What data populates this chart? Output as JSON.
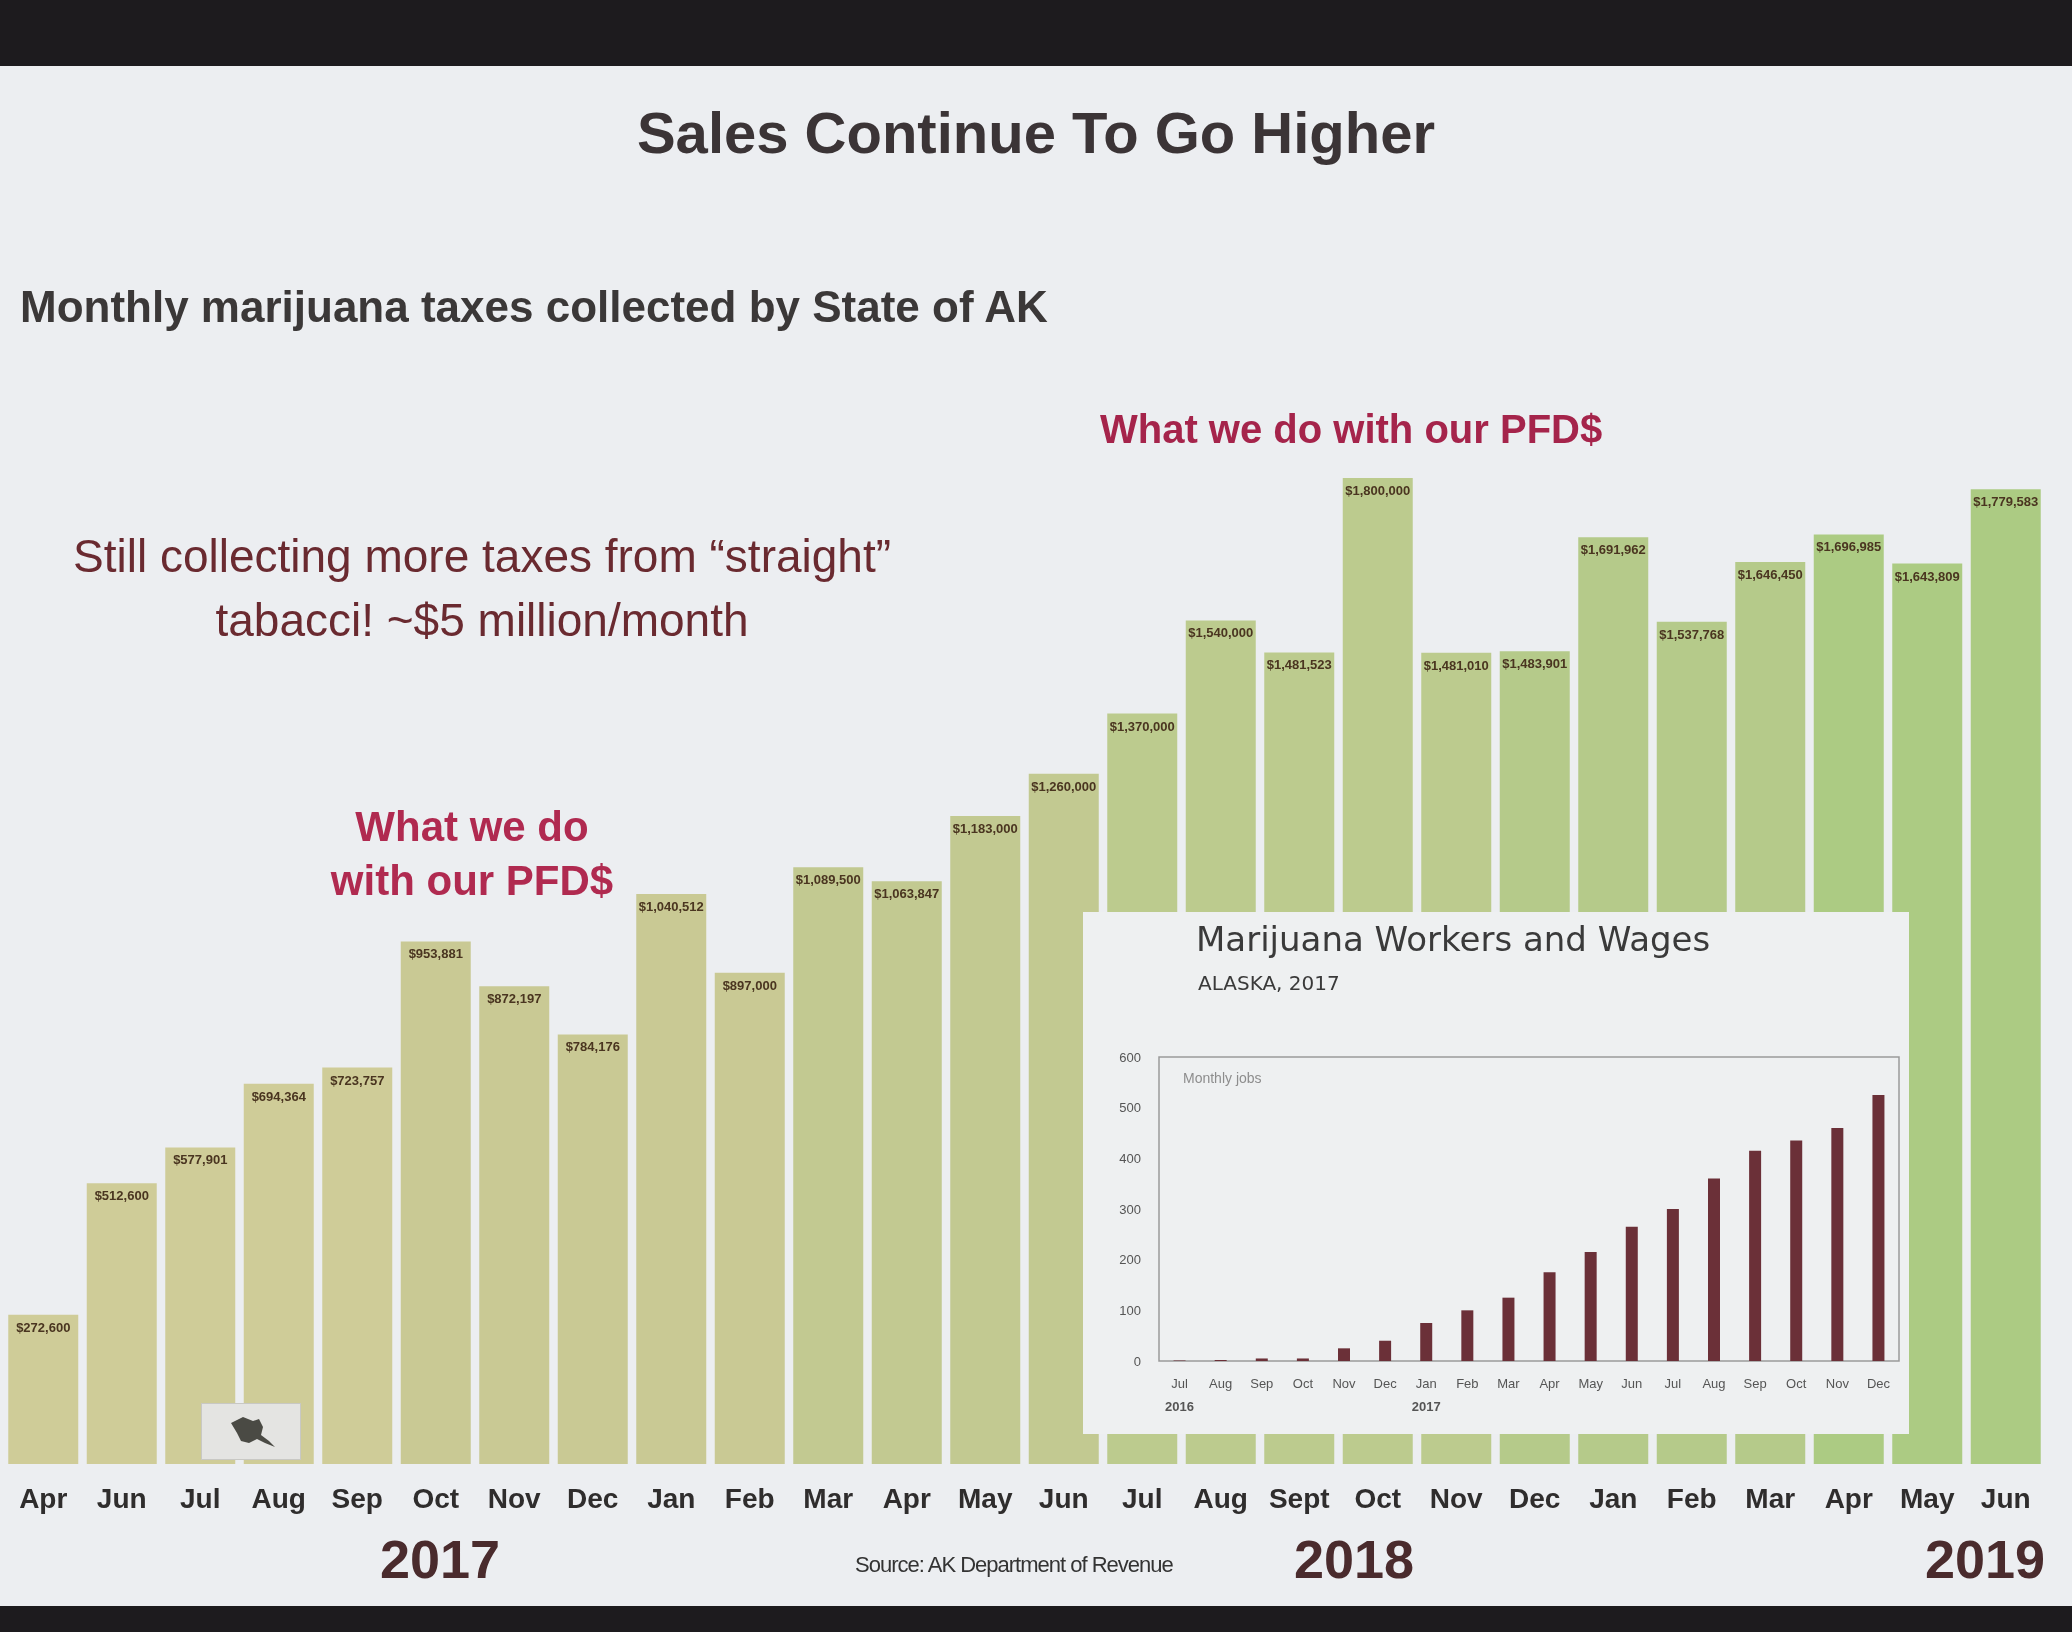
{
  "chart_data": [
    {
      "type": "bar",
      "title": "Sales Continue To Go Higher",
      "subtitle": "Monthly marijuana taxes collected by State of AK",
      "categories": [
        "Apr",
        "Jun",
        "Jul",
        "Aug",
        "Sep",
        "Oct",
        "Nov",
        "Dec",
        "Jan",
        "Feb",
        "Mar",
        "Apr",
        "May",
        "Jun",
        "Jul",
        "Aug",
        "Sept",
        "Oct",
        "Nov",
        "Dec",
        "Jan",
        "Feb",
        "Mar",
        "Apr",
        "May",
        "Jun"
      ],
      "values": [
        272600,
        512600,
        577901,
        694364,
        723757,
        953881,
        872197,
        784176,
        1040512,
        897000,
        1089500,
        1063847,
        1183000,
        1260000,
        1370000,
        1540000,
        1481523,
        1800000,
        1481010,
        1483901,
        1691962,
        1537768,
        1646450,
        1696985,
        1643809,
        1779583
      ],
      "colors": [
        "#cfcc98",
        "#cfcc98",
        "#cfcc98",
        "#cfcc98",
        "#cfcc98",
        "#c9c994",
        "#c9c994",
        "#c9c994",
        "#c9c994",
        "#c9c994",
        "#c2c991",
        "#c2c991",
        "#c2c991",
        "#c2c991",
        "#bccb8e",
        "#bccb8e",
        "#bccb8e",
        "#bccb8e",
        "#bccb8e",
        "#b5ca8a",
        "#b5ca8a",
        "#b5ca8a",
        "#b5ca8a",
        "#accb83",
        "#accb83",
        "#accb83"
      ],
      "value_labels": [
        "$272,600",
        "$512,600",
        "$577,901",
        "$694,364",
        "$723,757",
        "$953,881",
        "$872,197",
        "$784,176",
        "$1,040,512",
        "$897,000",
        "$1,089,500",
        "$1,063,847",
        "$1,183,000",
        "$1,260,000",
        "$1,370,000",
        "$1,540,000",
        "$1,481,523",
        "$1,800,000",
        "$1,481,010",
        "$1,483,901",
        "$1,691,962",
        "$1,537,768",
        "$1,646,450",
        "$1,696,985",
        "$1,643,809",
        "$1,779,583"
      ],
      "tick_labels": "x",
      "annotations": [
        "What we do with our PFD$",
        "Still collecting more taxes from “straight” tabacci! ~$5 million/month",
        "What we do with our PFD$",
        "2017",
        "2018",
        "2019",
        "Source: AK Department of Revenue"
      ]
    },
    {
      "type": "bar",
      "title": "Marijuana Workers and Wages",
      "subtitle": "ALASKA, 2017",
      "ylabel": "Monthly jobs",
      "categories": [
        "Jul",
        "Aug",
        "Sep",
        "Oct",
        "Nov",
        "Dec",
        "Jan",
        "Feb",
        "Mar",
        "Apr",
        "May",
        "Jun",
        "Jul",
        "Aug",
        "Sep",
        "Oct",
        "Nov",
        "Dec"
      ],
      "values": [
        1,
        2,
        5,
        5,
        25,
        40,
        75,
        100,
        125,
        175,
        215,
        265,
        300,
        360,
        415,
        435,
        460,
        525
      ],
      "color": "#6b3038",
      "ylim": [
        0,
        600
      ],
      "yticks": [
        0,
        100,
        200,
        300,
        400,
        500,
        600
      ],
      "annotations": [
        "2016",
        "2017"
      ]
    }
  ]
}
